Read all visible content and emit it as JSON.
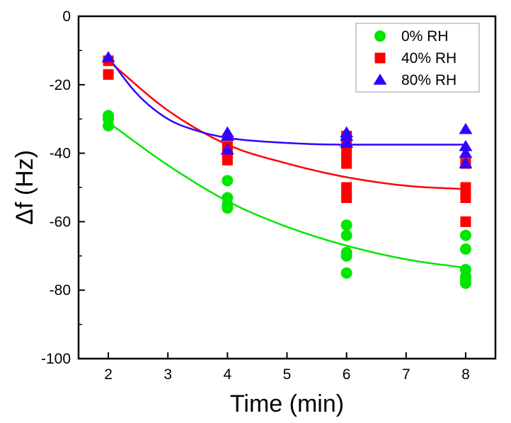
{
  "chart_data": {
    "type": "scatter",
    "title": "",
    "xlabel": "Time (min)",
    "ylabel": "Δf (Hz)",
    "xlim": [
      1.5,
      8.5
    ],
    "ylim": [
      -100,
      0
    ],
    "xticks": [
      2,
      3,
      4,
      5,
      6,
      7,
      8
    ],
    "yticks": [
      0,
      -20,
      -40,
      -60,
      -80,
      -100
    ],
    "legend_position": "top-right",
    "series": [
      {
        "name": "0% RH",
        "marker": "circle",
        "color": "#00e600",
        "points": [
          [
            2,
            -29
          ],
          [
            2,
            -30
          ],
          [
            2,
            -32
          ],
          [
            4,
            -48
          ],
          [
            4,
            -53
          ],
          [
            4,
            -55
          ],
          [
            4,
            -56
          ],
          [
            6,
            -61
          ],
          [
            6,
            -64
          ],
          [
            6,
            -69
          ],
          [
            6,
            -70
          ],
          [
            6,
            -75
          ],
          [
            8,
            -64
          ],
          [
            8,
            -68
          ],
          [
            8,
            -74
          ],
          [
            8,
            -76
          ],
          [
            8,
            -77
          ],
          [
            8,
            -78
          ]
        ],
        "fit": [
          [
            2,
            -31
          ],
          [
            3,
            -43.5
          ],
          [
            4,
            -54
          ],
          [
            5,
            -61.5
          ],
          [
            6,
            -67
          ],
          [
            7,
            -71
          ],
          [
            8,
            -73.5
          ]
        ]
      },
      {
        "name": "40% RH",
        "marker": "square",
        "color": "#ff0000",
        "points": [
          [
            2,
            -13
          ],
          [
            2,
            -17
          ],
          [
            4,
            -38
          ],
          [
            4,
            -40
          ],
          [
            4,
            -42
          ],
          [
            6,
            -35
          ],
          [
            6,
            -38
          ],
          [
            6,
            -41
          ],
          [
            6,
            -43
          ],
          [
            6,
            -50
          ],
          [
            6,
            -52
          ],
          [
            6,
            -53
          ],
          [
            8,
            -43
          ],
          [
            8,
            -50
          ],
          [
            8,
            -52
          ],
          [
            8,
            -53
          ],
          [
            8,
            -60
          ]
        ],
        "fit": [
          [
            2,
            -13
          ],
          [
            3,
            -27.5
          ],
          [
            4,
            -37.5
          ],
          [
            5,
            -43
          ],
          [
            6,
            -47
          ],
          [
            7,
            -49.5
          ],
          [
            8,
            -50.5
          ]
        ]
      },
      {
        "name": "80% RH",
        "marker": "triangle",
        "color": "#3300ff",
        "points": [
          [
            2,
            -12
          ],
          [
            4,
            -34
          ],
          [
            4,
            -35
          ],
          [
            4,
            -39
          ],
          [
            6,
            -34
          ],
          [
            6,
            -35
          ],
          [
            6,
            -37
          ],
          [
            8,
            -33
          ],
          [
            8,
            -38
          ],
          [
            8,
            -40
          ],
          [
            8,
            -43
          ]
        ],
        "fit": [
          [
            2,
            -12
          ],
          [
            2.5,
            -23
          ],
          [
            3,
            -30
          ],
          [
            3.5,
            -33.5
          ],
          [
            4,
            -35.5
          ],
          [
            5,
            -37
          ],
          [
            6,
            -37.5
          ],
          [
            7,
            -37.5
          ],
          [
            8,
            -37.5
          ]
        ]
      }
    ]
  }
}
